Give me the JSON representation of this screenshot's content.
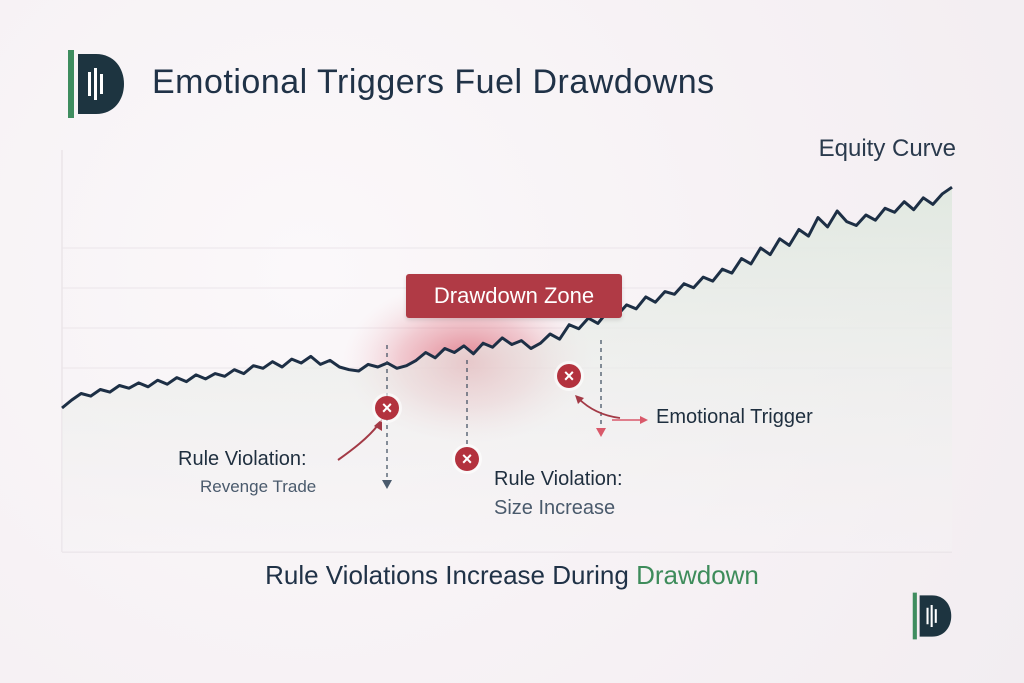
{
  "header": {
    "title": "Emotional Triggers Fuel Drawdowns",
    "logo_icon": "brand-logo-icon"
  },
  "chart_data": {
    "type": "line",
    "series": [
      {
        "name": "Equity Curve",
        "values": [
          0.0,
          0.6,
          1.1,
          0.9,
          1.4,
          1.2,
          1.7,
          1.5,
          1.9,
          1.6,
          2.1,
          1.8,
          2.3,
          2.0,
          2.5,
          2.2,
          2.6,
          2.4,
          2.9,
          2.6,
          3.2,
          3.0,
          3.5,
          3.1,
          3.7,
          3.4,
          3.9,
          3.3,
          3.6,
          3.1,
          2.9,
          2.8,
          3.3,
          3.1,
          3.4,
          3.0,
          3.2,
          3.6,
          4.2,
          3.8,
          4.5,
          4.2,
          4.7,
          4.1,
          4.9,
          4.6,
          5.3,
          4.8,
          5.1,
          4.5,
          4.9,
          5.6,
          5.2,
          6.3,
          6.0,
          6.8,
          6.4,
          7.3,
          7.0,
          7.8,
          7.5,
          8.4,
          8.0,
          8.8,
          8.6,
          9.4,
          9.1,
          9.9,
          9.6,
          10.5,
          10.2,
          11.3,
          10.9,
          12.1,
          11.6,
          12.8,
          12.3,
          13.5,
          13.0,
          14.4,
          13.7,
          14.9,
          14.1,
          13.8,
          14.6,
          14.2,
          15.1,
          14.8,
          15.6,
          15.0,
          15.9,
          15.4,
          16.2,
          16.7
        ]
      }
    ],
    "xlabel": "",
    "ylabel": "",
    "ylim": [
      0,
      18
    ],
    "grid": true,
    "series_label": "Equity Curve",
    "annotations": {
      "drawdown_zone_label": "Drawdown Zone",
      "violation_1_title": "Rule Violation:",
      "violation_1_sub": "Revenge Trade",
      "violation_2_title": "Rule Violation:",
      "violation_2_sub": "Size Increase",
      "emotional_trigger": "Emotional Trigger",
      "violation_marker_symbol": "×"
    }
  },
  "caption": {
    "text_main": "Rule Violations Increase During",
    "text_accent": "Drawdown"
  },
  "colors": {
    "line": "#1d2f45",
    "area_fill": "#e9efe9",
    "drawdown_glow": "#d9596a",
    "marker_red": "#b3323e",
    "accent_green": "#3e8c5b"
  }
}
